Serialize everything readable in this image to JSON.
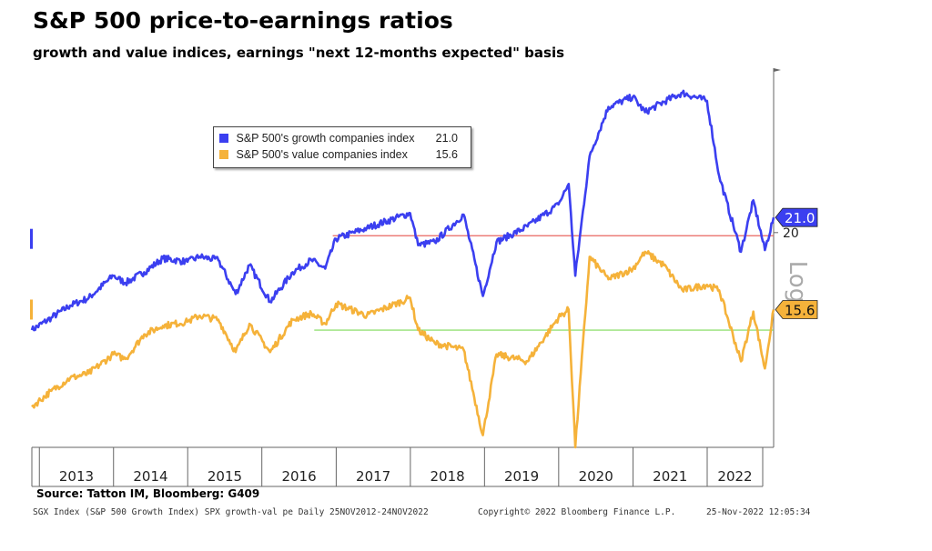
{
  "title": "S&P 500 price-to-earnings ratios",
  "subtitle": "growth and value indices, earnings \"next 12-months expected\" basis",
  "source": "Source: Tatton IM, Bloomberg: G409",
  "footer": {
    "index": "SGX Index (S&P 500 Growth Index) SPX growth-val pe  Daily 25NOV2012-24NOV2022",
    "copyright": "Copyright© 2022 Bloomberg Finance L.P.",
    "timestamp": "25-Nov-2022 12:05:34"
  },
  "colors": {
    "growth": "#3b3ff0",
    "value": "#f5b23a",
    "growth_ref": "#e8645f",
    "value_ref": "#7ed957",
    "axis": "#666666"
  },
  "chart_data": {
    "type": "line",
    "title": "S&P 500 price-to-earnings ratios",
    "subtitle": "growth and value indices, earnings \"next 12-months expected\" basis",
    "x_tick_labels": [
      "2013",
      "2014",
      "2015",
      "2016",
      "2017",
      "2018",
      "2019",
      "2020",
      "2021",
      "2022"
    ],
    "xlim": [
      "2012-11-25",
      "2022-11-24"
    ],
    "y_scale": "log",
    "y_axis_label": "Log",
    "y_tick_labels": [
      20
    ],
    "ylim": [
      10,
      34
    ],
    "grid": false,
    "legend_position": "top-left",
    "reference_lines": [
      {
        "series": "growth",
        "value": 19.8
      },
      {
        "series": "value",
        "value": 14.6
      }
    ],
    "last_value_labels": [
      "21.0",
      "15.6"
    ],
    "series": [
      {
        "name": "S&P 500's growth companies index",
        "last": "21.0",
        "key": "growth",
        "points": [
          [
            "2012-11-25",
            14.6
          ],
          [
            "2013-03-01",
            15.2
          ],
          [
            "2013-06-01",
            15.8
          ],
          [
            "2013-09-01",
            16.2
          ],
          [
            "2013-12-31",
            17.4
          ],
          [
            "2014-03-01",
            17.0
          ],
          [
            "2014-06-01",
            17.6
          ],
          [
            "2014-09-01",
            18.4
          ],
          [
            "2014-12-31",
            18.2
          ],
          [
            "2015-03-01",
            18.5
          ],
          [
            "2015-06-01",
            18.3
          ],
          [
            "2015-08-25",
            16.4
          ],
          [
            "2015-11-01",
            18.0
          ],
          [
            "2016-02-11",
            16.0
          ],
          [
            "2016-06-01",
            17.6
          ],
          [
            "2016-09-01",
            18.3
          ],
          [
            "2016-11-08",
            17.8
          ],
          [
            "2016-12-31",
            19.6
          ],
          [
            "2017-06-01",
            20.3
          ],
          [
            "2017-12-31",
            21.3
          ],
          [
            "2018-02-08",
            19.2
          ],
          [
            "2018-05-01",
            19.4
          ],
          [
            "2018-09-20",
            21.2
          ],
          [
            "2018-12-24",
            16.3
          ],
          [
            "2019-03-01",
            19.4
          ],
          [
            "2019-08-01",
            20.4
          ],
          [
            "2019-12-31",
            21.9
          ],
          [
            "2020-02-19",
            23.4
          ],
          [
            "2020-03-23",
            17.4
          ],
          [
            "2020-06-01",
            25.6
          ],
          [
            "2020-09-02",
            30.0
          ],
          [
            "2020-12-31",
            31.0
          ],
          [
            "2021-03-01",
            29.5
          ],
          [
            "2021-06-01",
            30.5
          ],
          [
            "2021-09-01",
            31.4
          ],
          [
            "2021-12-31",
            30.6
          ],
          [
            "2022-03-01",
            24.0
          ],
          [
            "2022-06-16",
            18.8
          ],
          [
            "2022-08-16",
            22.2
          ],
          [
            "2022-10-12",
            18.9
          ],
          [
            "2022-11-24",
            21.0
          ]
        ]
      },
      {
        "name": "S&P 500's value companies index",
        "last": "15.6",
        "key": "value",
        "points": [
          [
            "2012-11-25",
            11.4
          ],
          [
            "2013-03-01",
            12.0
          ],
          [
            "2013-06-01",
            12.5
          ],
          [
            "2013-09-01",
            12.7
          ],
          [
            "2013-12-31",
            13.5
          ],
          [
            "2014-03-01",
            13.3
          ],
          [
            "2014-06-01",
            14.4
          ],
          [
            "2014-09-01",
            14.8
          ],
          [
            "2014-12-31",
            15.0
          ],
          [
            "2015-03-01",
            15.3
          ],
          [
            "2015-06-01",
            15.1
          ],
          [
            "2015-08-25",
            13.6
          ],
          [
            "2015-11-01",
            14.9
          ],
          [
            "2016-02-11",
            13.6
          ],
          [
            "2016-06-01",
            15.1
          ],
          [
            "2016-09-01",
            15.4
          ],
          [
            "2016-11-08",
            14.9
          ],
          [
            "2016-12-31",
            15.9
          ],
          [
            "2017-06-01",
            15.3
          ],
          [
            "2017-12-31",
            16.2
          ],
          [
            "2018-02-08",
            14.6
          ],
          [
            "2018-05-01",
            14.0
          ],
          [
            "2018-09-20",
            13.7
          ],
          [
            "2018-12-24",
            10.4
          ],
          [
            "2019-03-01",
            13.5
          ],
          [
            "2019-08-01",
            13.2
          ],
          [
            "2019-12-31",
            15.2
          ],
          [
            "2020-02-19",
            15.6
          ],
          [
            "2020-03-23",
            10.0
          ],
          [
            "2020-06-01",
            18.5
          ],
          [
            "2020-09-02",
            17.2
          ],
          [
            "2020-12-31",
            17.8
          ],
          [
            "2021-03-01",
            18.8
          ],
          [
            "2021-06-01",
            18.0
          ],
          [
            "2021-09-01",
            16.6
          ],
          [
            "2021-12-31",
            16.9
          ],
          [
            "2022-03-01",
            16.6
          ],
          [
            "2022-06-16",
            13.2
          ],
          [
            "2022-08-16",
            15.5
          ],
          [
            "2022-10-12",
            12.9
          ],
          [
            "2022-11-24",
            15.6
          ]
        ]
      }
    ]
  }
}
